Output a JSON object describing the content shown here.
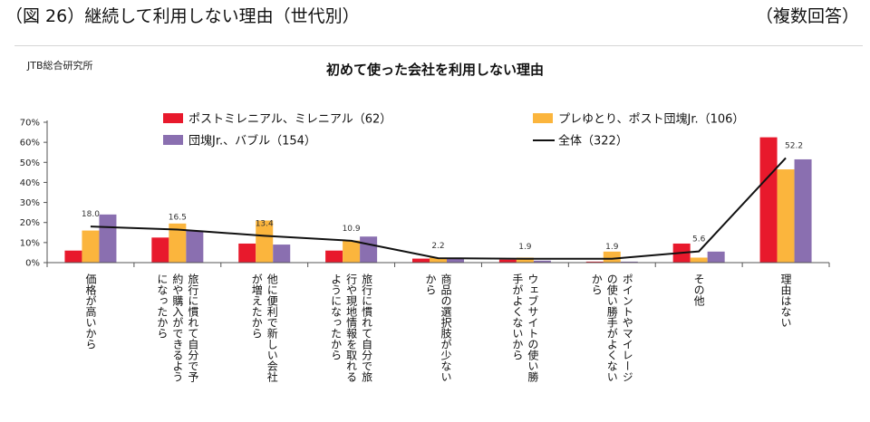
{
  "figure": {
    "title": "（図 26）継続して利用しない理由（世代別）",
    "note": "（複数回答）"
  },
  "source": "JTB総合研究所",
  "chart_data": {
    "type": "bar",
    "title": "初めて使った会社を利用しない理由",
    "ylim": [
      0,
      70
    ],
    "yticks": [
      "0%",
      "10%",
      "20%",
      "30%",
      "40%",
      "50%",
      "60%",
      "70%"
    ],
    "categories": [
      [
        "価格が高いから"
      ],
      [
        "旅行に慣れて自分で予",
        "約や購入ができるよう",
        "になったから"
      ],
      [
        "他に便利で新しい会社",
        "が増えたから"
      ],
      [
        "旅行に慣れて自分で旅",
        "行や現地情報を取れる",
        "ようになったから"
      ],
      [
        "商品の選択肢が少ない",
        "から"
      ],
      [
        "ウェブサイトの使い勝",
        "手がよくないから"
      ],
      [
        "ポイントやマイレージ",
        "の使い勝手がよくない",
        "から"
      ],
      [
        "その他"
      ],
      [
        "理由はない"
      ]
    ],
    "series": [
      {
        "name": "ポストミレニアル、ミレニアル（62）",
        "color": "#e8192c",
        "values": [
          6,
          12.5,
          9.5,
          6,
          2,
          1.5,
          0.5,
          9.5,
          62.5
        ]
      },
      {
        "name": "プレゆとり、ポスト団塊Jr.（106）",
        "color": "#fbb53d",
        "values": [
          16,
          19.5,
          21,
          11,
          2.5,
          2.5,
          5.5,
          2.5,
          46.5
        ]
      },
      {
        "name": "団塊Jr.、バブル（154）",
        "color": "#8a6fb0",
        "values": [
          24,
          16,
          9,
          13,
          2,
          1,
          0.5,
          5.5,
          51.5
        ]
      }
    ],
    "line": {
      "name": "全体（322）",
      "color": "#111111",
      "values": [
        18.0,
        16.5,
        13.4,
        10.9,
        2.2,
        1.9,
        1.9,
        5.6,
        52.2
      ]
    },
    "data_labels": [
      "18.0",
      "16.5",
      "13.4",
      "10.9",
      "2.2",
      "1.9",
      "1.9",
      "5.6",
      "52.2"
    ]
  }
}
